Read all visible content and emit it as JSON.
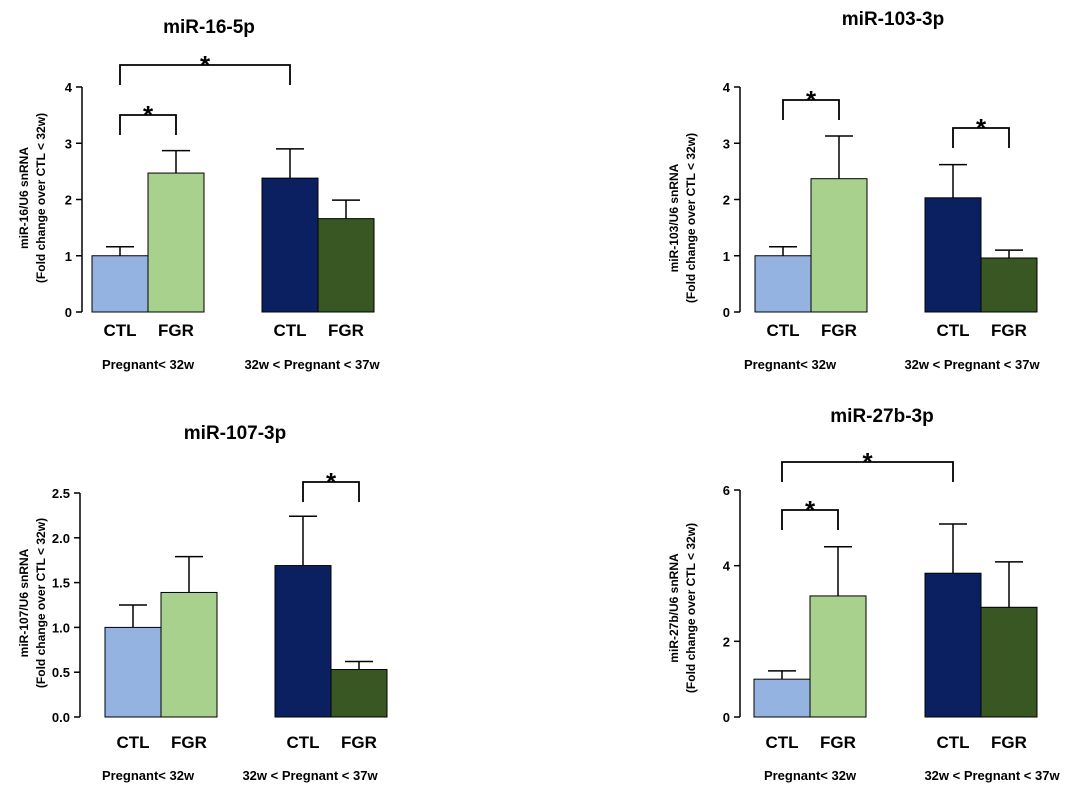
{
  "figure": {
    "group_labels": [
      "Pregnant< 32w",
      "32w < Pregnant < 37w"
    ],
    "categories": [
      "CTL",
      "FGR",
      "CTL",
      "FGR"
    ],
    "bar_colors": [
      "#95b3e0",
      "#a9d18e",
      "#0b2060",
      "#385723"
    ],
    "significance_label": "*"
  },
  "chart_data": [
    {
      "type": "bar",
      "title": "miR-16-5p",
      "ylabel": "miR-16/U6 snRNA",
      "ylabel2": "(Fold change over CTL < 32w)",
      "ylim": [
        0,
        4
      ],
      "yticks": [
        "0",
        "1",
        "2",
        "3",
        "4"
      ],
      "tick_values": [
        0,
        1,
        2,
        3,
        4
      ],
      "categories": [
        "CTL",
        "FGR",
        "CTL",
        "FGR"
      ],
      "values": [
        1.0,
        2.47,
        2.38,
        1.66
      ],
      "errors": [
        0.16,
        0.4,
        0.52,
        0.33
      ],
      "significance": [
        {
          "from": 0,
          "to": 1,
          "label": "*"
        },
        {
          "from": 0,
          "to": 2,
          "label": "*"
        }
      ]
    },
    {
      "type": "bar",
      "title": "miR-103-3p",
      "ylabel": "miR-103/U6 snRNA",
      "ylabel2": "(Fold change over CTL < 32w)",
      "ylim": [
        0,
        4
      ],
      "yticks": [
        "0",
        "1",
        "2",
        "3",
        "4"
      ],
      "tick_values": [
        0,
        1,
        2,
        3,
        4
      ],
      "categories": [
        "CTL",
        "FGR",
        "CTL",
        "FGR"
      ],
      "values": [
        1.0,
        2.37,
        2.03,
        0.96
      ],
      "errors": [
        0.16,
        0.76,
        0.59,
        0.14
      ],
      "significance": [
        {
          "from": 0,
          "to": 1,
          "label": "*"
        },
        {
          "from": 2,
          "to": 3,
          "label": "*"
        }
      ]
    },
    {
      "type": "bar",
      "title": "miR-107-3p",
      "ylabel": "miR-107/U6 snRNA",
      "ylabel2": "(Fold change over CTL < 32w)",
      "ylim": [
        0,
        2.5
      ],
      "yticks": [
        "0.0",
        "0.5",
        "1.0",
        "1.5",
        "2.0",
        "2.5"
      ],
      "tick_values": [
        0,
        0.5,
        1.0,
        1.5,
        2.0,
        2.5
      ],
      "categories": [
        "CTL",
        "FGR",
        "CTL",
        "FGR"
      ],
      "values": [
        1.0,
        1.39,
        1.69,
        0.53
      ],
      "errors": [
        0.25,
        0.4,
        0.55,
        0.09
      ],
      "significance": [
        {
          "from": 2,
          "to": 3,
          "label": "*"
        }
      ]
    },
    {
      "type": "bar",
      "title": "miR-27b-3p",
      "ylabel": "miR-27b/U6 snRNA",
      "ylabel2": "(Fold change over CTL < 32w)",
      "ylim": [
        0,
        6
      ],
      "yticks": [
        "0",
        "2",
        "4",
        "6"
      ],
      "tick_values": [
        0,
        2,
        4,
        6
      ],
      "categories": [
        "CTL",
        "FGR",
        "CTL",
        "FGR"
      ],
      "values": [
        1.0,
        3.2,
        3.8,
        2.9
      ],
      "errors": [
        0.22,
        1.3,
        1.3,
        1.2
      ],
      "significance": [
        {
          "from": 0,
          "to": 1,
          "label": "*"
        },
        {
          "from": 0,
          "to": 2,
          "label": "*"
        }
      ]
    }
  ]
}
